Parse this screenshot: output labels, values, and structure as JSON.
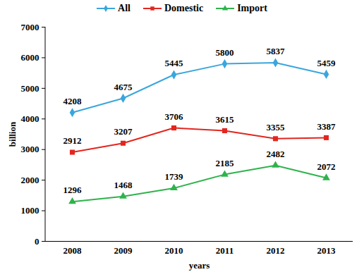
{
  "chart_data": {
    "type": "line",
    "categories": [
      "2008",
      "2009",
      "2010",
      "2011",
      "2012",
      "2013"
    ],
    "series": [
      {
        "name": "All",
        "color": "#3aa6dd",
        "marker": "diamond",
        "values": [
          4208,
          4675,
          5445,
          5800,
          5837,
          5459
        ]
      },
      {
        "name": "Domestic",
        "color": "#e3261f",
        "marker": "square",
        "values": [
          2912,
          3207,
          3706,
          3615,
          3355,
          3387
        ]
      },
      {
        "name": "Import",
        "color": "#2fb34c",
        "marker": "triangle",
        "values": [
          1296,
          1468,
          1739,
          2185,
          2482,
          2072
        ]
      }
    ],
    "x_label": "years",
    "y_label": "billion",
    "ylim": [
      0,
      7000
    ],
    "yticks": [
      0,
      1000,
      2000,
      3000,
      4000,
      5000,
      6000,
      7000
    ],
    "grid": false,
    "legend": "top",
    "data_labels": true
  }
}
